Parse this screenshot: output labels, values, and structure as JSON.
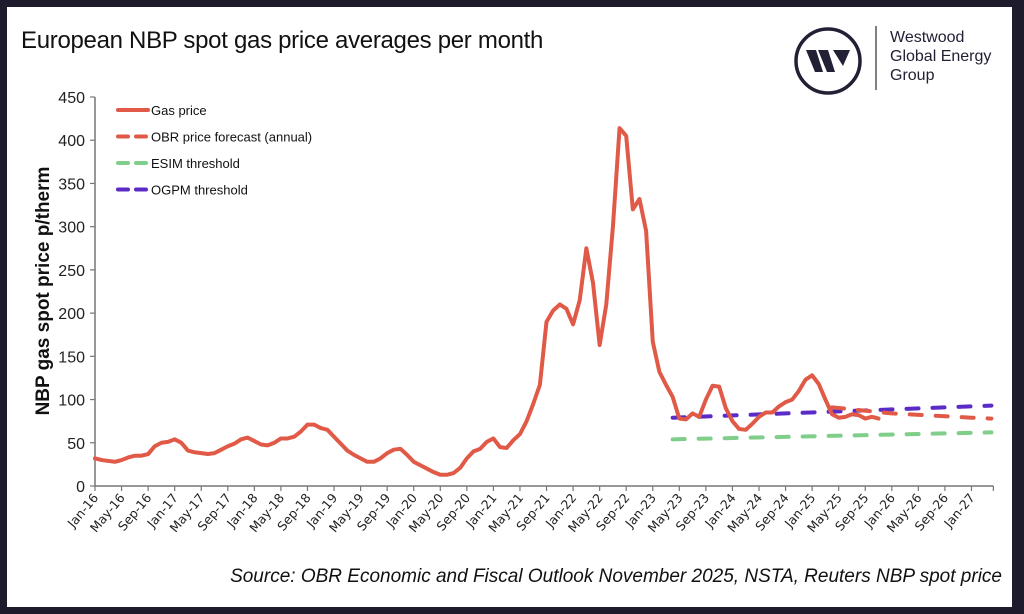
{
  "title": "European NBP spot gas price averages per month",
  "logo": {
    "name": "Westwood Global Energy Group",
    "lines": [
      "Westwood",
      "Global Energy",
      "Group"
    ],
    "icon": "w-circle-logo"
  },
  "source": "Source: OBR Economic and Fiscal Outlook November 2025, NSTA, Reuters NBP spot price",
  "chart_data": {
    "type": "line",
    "title": "European NBP spot gas price averages per month",
    "ylabel": "NBP gas spot price p/therm",
    "xlabel": "",
    "ylim": [
      0,
      450
    ],
    "yticks": [
      0,
      50,
      100,
      150,
      200,
      250,
      300,
      350,
      400,
      450
    ],
    "x_start": "2016-01",
    "x_end": "2027-04",
    "xtick_labels": [
      "Jan-16",
      "May-16",
      "Sep-16",
      "Jan-17",
      "May-17",
      "Sep-17",
      "Jan-18",
      "May-18",
      "Sep-18",
      "Jan-19",
      "May-19",
      "Sep-19",
      "Jan-20",
      "May-20",
      "Sep-20",
      "Jan-21",
      "May-21",
      "Sep-21",
      "Jan-22",
      "May-22",
      "Sep-22",
      "Jan-23",
      "May-23",
      "Sep-23",
      "Jan-24",
      "May-24",
      "Sep-24",
      "Jan-25",
      "May-25",
      "Sep-25",
      "Jan-26",
      "May-26",
      "Sep-26",
      "Jan-27"
    ],
    "grid": false,
    "legend_placement": "top-left",
    "series": [
      {
        "name": "Gas price",
        "color": "#e05a47",
        "style": "solid",
        "start": "2016-01",
        "values": [
          32,
          30,
          29,
          28,
          30,
          33,
          35,
          35,
          37,
          46,
          50,
          51,
          54,
          50,
          41,
          39,
          38,
          37,
          38,
          42,
          46,
          49,
          54,
          56,
          52,
          48,
          47,
          50,
          55,
          55,
          57,
          63,
          71,
          71,
          67,
          65,
          57,
          49,
          41,
          36,
          32,
          28,
          28,
          32,
          38,
          42,
          43,
          36,
          28,
          24,
          20,
          16,
          13,
          13,
          15,
          21,
          32,
          40,
          43,
          51,
          55,
          45,
          44,
          53,
          60,
          75,
          95,
          117,
          190,
          203,
          210,
          205,
          187,
          215,
          275,
          235,
          163,
          210,
          300,
          414,
          405,
          320,
          332,
          295,
          167,
          132,
          117,
          103,
          78,
          77,
          84,
          80,
          100,
          116,
          115,
          90,
          75,
          66,
          65,
          72,
          80,
          85,
          85,
          92,
          97,
          100,
          110,
          123,
          128,
          118,
          100,
          83,
          79,
          80,
          83,
          82,
          78,
          80,
          78
        ]
      },
      {
        "name": "OBR price forecast (annual)",
        "color": "#e05a47",
        "style": "dashed",
        "points": [
          [
            "2025-04",
            91
          ],
          [
            "2026-01",
            84
          ],
          [
            "2027-01",
            79
          ],
          [
            "2027-04",
            78
          ]
        ]
      },
      {
        "name": "ESIM threshold",
        "color": "#7fcf8a",
        "style": "dashed",
        "points": [
          [
            "2023-04",
            54
          ],
          [
            "2027-04",
            62
          ]
        ]
      },
      {
        "name": "OGPM threshold",
        "color": "#5b2bc8",
        "style": "dashed",
        "points": [
          [
            "2023-04",
            79
          ],
          [
            "2027-04",
            93
          ]
        ]
      }
    ]
  }
}
